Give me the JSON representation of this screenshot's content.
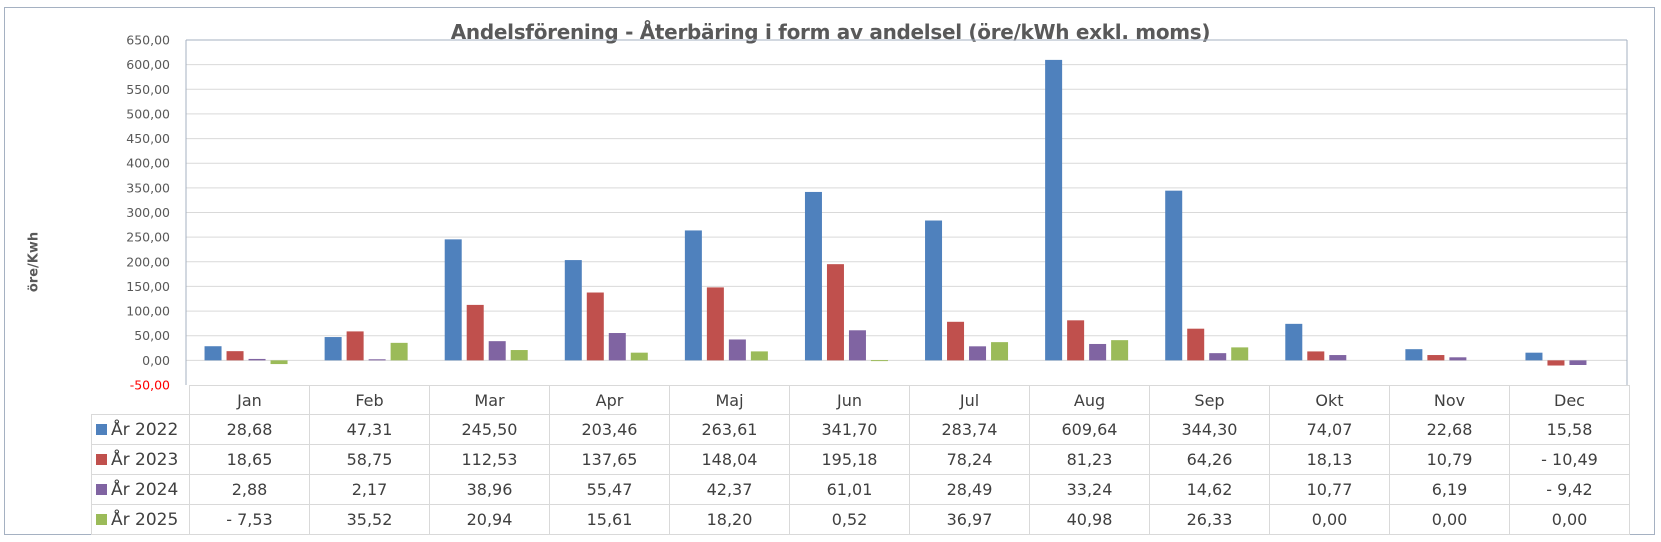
{
  "chart_data": {
    "type": "bar",
    "title": "Andelsförening - Återbäring i form av andelsel (öre/kWh exkl. moms)",
    "xlabel": "",
    "ylabel": "öre/Kwh",
    "ylim": [
      -50,
      650
    ],
    "yticks": [
      650,
      600,
      550,
      500,
      450,
      400,
      350,
      300,
      250,
      200,
      150,
      100,
      50,
      0,
      -50
    ],
    "ytick_labels": [
      "650,00",
      "600,00",
      "550,00",
      "500,00",
      "450,00",
      "400,00",
      "350,00",
      "300,00",
      "250,00",
      "200,00",
      "150,00",
      "100,00",
      "50,00",
      "0,00",
      "-50,00"
    ],
    "grid": true,
    "legend": "data-table",
    "categories": [
      "Jan",
      "Feb",
      "Mar",
      "Apr",
      "Maj",
      "Jun",
      "Jul",
      "Aug",
      "Sep",
      "Okt",
      "Nov",
      "Dec"
    ],
    "series": [
      {
        "name": "År 2022",
        "color": "#4f81bd",
        "values": [
          28.68,
          47.31,
          245.5,
          203.46,
          263.61,
          341.7,
          283.74,
          609.64,
          344.3,
          74.07,
          22.68,
          15.58
        ],
        "labels": [
          "28,68",
          "47,31",
          "245,50",
          "203,46",
          "263,61",
          "341,70",
          "283,74",
          "609,64",
          "344,30",
          "74,07",
          "22,68",
          "15,58"
        ]
      },
      {
        "name": "År 2023",
        "color": "#c0504d",
        "values": [
          18.65,
          58.75,
          112.53,
          137.65,
          148.04,
          195.18,
          78.24,
          81.23,
          64.26,
          18.13,
          10.79,
          -10.49
        ],
        "labels": [
          "18,65",
          "58,75",
          "112,53",
          "137,65",
          "148,04",
          "195,18",
          "78,24",
          "81,23",
          "64,26",
          "18,13",
          "10,79",
          "- 10,49"
        ]
      },
      {
        "name": "År 2024",
        "color": "#8064a2",
        "values": [
          2.88,
          2.17,
          38.96,
          55.47,
          42.37,
          61.01,
          28.49,
          33.24,
          14.62,
          10.77,
          6.19,
          -9.42
        ],
        "labels": [
          "2,88",
          "2,17",
          "38,96",
          "55,47",
          "42,37",
          "61,01",
          "28,49",
          "33,24",
          "14,62",
          "10,77",
          "6,19",
          "- 9,42"
        ]
      },
      {
        "name": "År 2025",
        "color": "#9bbb59",
        "values": [
          -7.53,
          35.52,
          20.94,
          15.61,
          18.2,
          0.52,
          36.97,
          40.98,
          26.33,
          0.0,
          0.0,
          0.0
        ],
        "labels": [
          "- 7,53",
          "35,52",
          "20,94",
          "15,61",
          "18,20",
          "0,52",
          "36,97",
          "40,98",
          "26,33",
          "0,00",
          "0,00",
          "0,00"
        ]
      }
    ],
    "negative_tick_color": "#ff0000",
    "axis_color": "#a5b1c2",
    "grid_color": "#d9d9d9"
  }
}
